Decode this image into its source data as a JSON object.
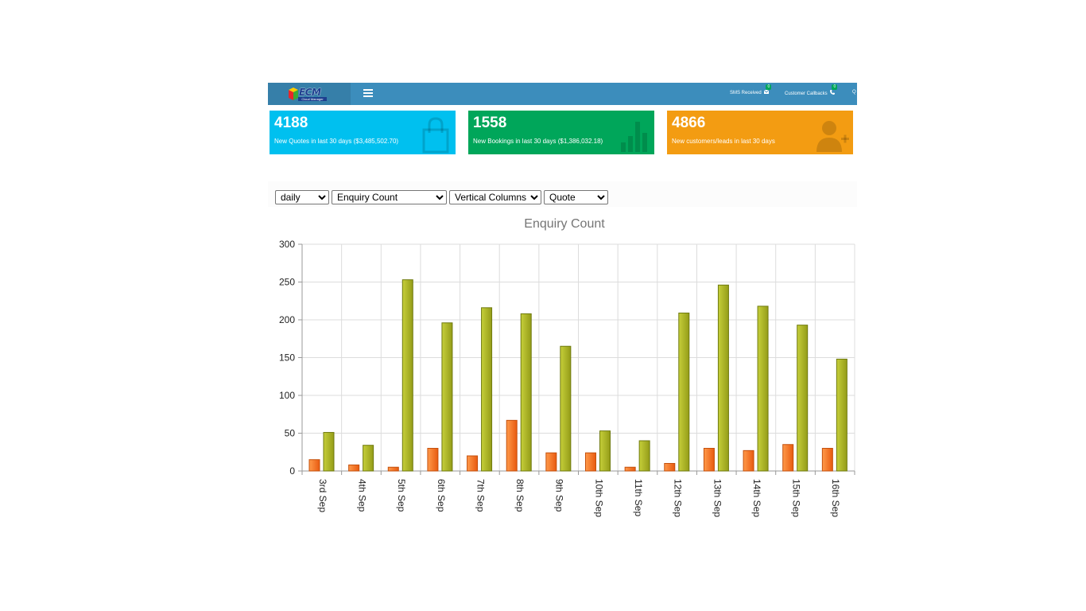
{
  "header": {
    "logo_text": "ECM",
    "logo_subtext": "Cloud Manager",
    "nav": [
      {
        "label": "SMS Received",
        "badge": "0",
        "icon": "envelope-icon"
      },
      {
        "label": "Customer Callbacks",
        "badge": "0",
        "icon": "phone-icon"
      },
      {
        "label": "Q",
        "icon": ""
      }
    ]
  },
  "info_boxes": [
    {
      "value": "4188",
      "label": "New Quotes in last 30 days ($3,485,502.70)",
      "color": "#00c0ef",
      "icon": "shopping-bag-icon"
    },
    {
      "value": "1558",
      "label": "New Bookings in last 30 days ($1,386,032.18)",
      "color": "#00a65a",
      "icon": "bar-chart-icon"
    },
    {
      "value": "4866",
      "label": "New customers/leads in last 30 days",
      "color": "#f39c12",
      "icon": "user-plus-icon"
    }
  ],
  "controls": {
    "period": {
      "selected": "daily"
    },
    "metric": {
      "selected": "Enquiry Count"
    },
    "chart_type": {
      "selected": "Vertical Columns"
    },
    "type": {
      "selected": "Quote"
    }
  },
  "chart_data": {
    "type": "bar",
    "title": "Enquiry Count",
    "categories": [
      "3rd Sep",
      "4th Sep",
      "5th Sep",
      "6th Sep",
      "7th Sep",
      "8th Sep",
      "9th Sep",
      "10th Sep",
      "11th Sep",
      "12th Sep",
      "13th Sep",
      "14th Sep",
      "15th Sep",
      "16th Sep"
    ],
    "series": [
      {
        "values": [
          15,
          8,
          5,
          30,
          20,
          67,
          24,
          24,
          5,
          10,
          30,
          27,
          35,
          30
        ],
        "color": "#f26b1d"
      },
      {
        "values": [
          51,
          34,
          253,
          196,
          216,
          208,
          165,
          53,
          40,
          209,
          246,
          218,
          193,
          148
        ],
        "color": "#a8b226"
      }
    ],
    "ylim": [
      0,
      300
    ],
    "yticks": [
      "0",
      "50",
      "100",
      "150",
      "200",
      "250",
      "300"
    ],
    "grid": true,
    "legend": "none"
  }
}
